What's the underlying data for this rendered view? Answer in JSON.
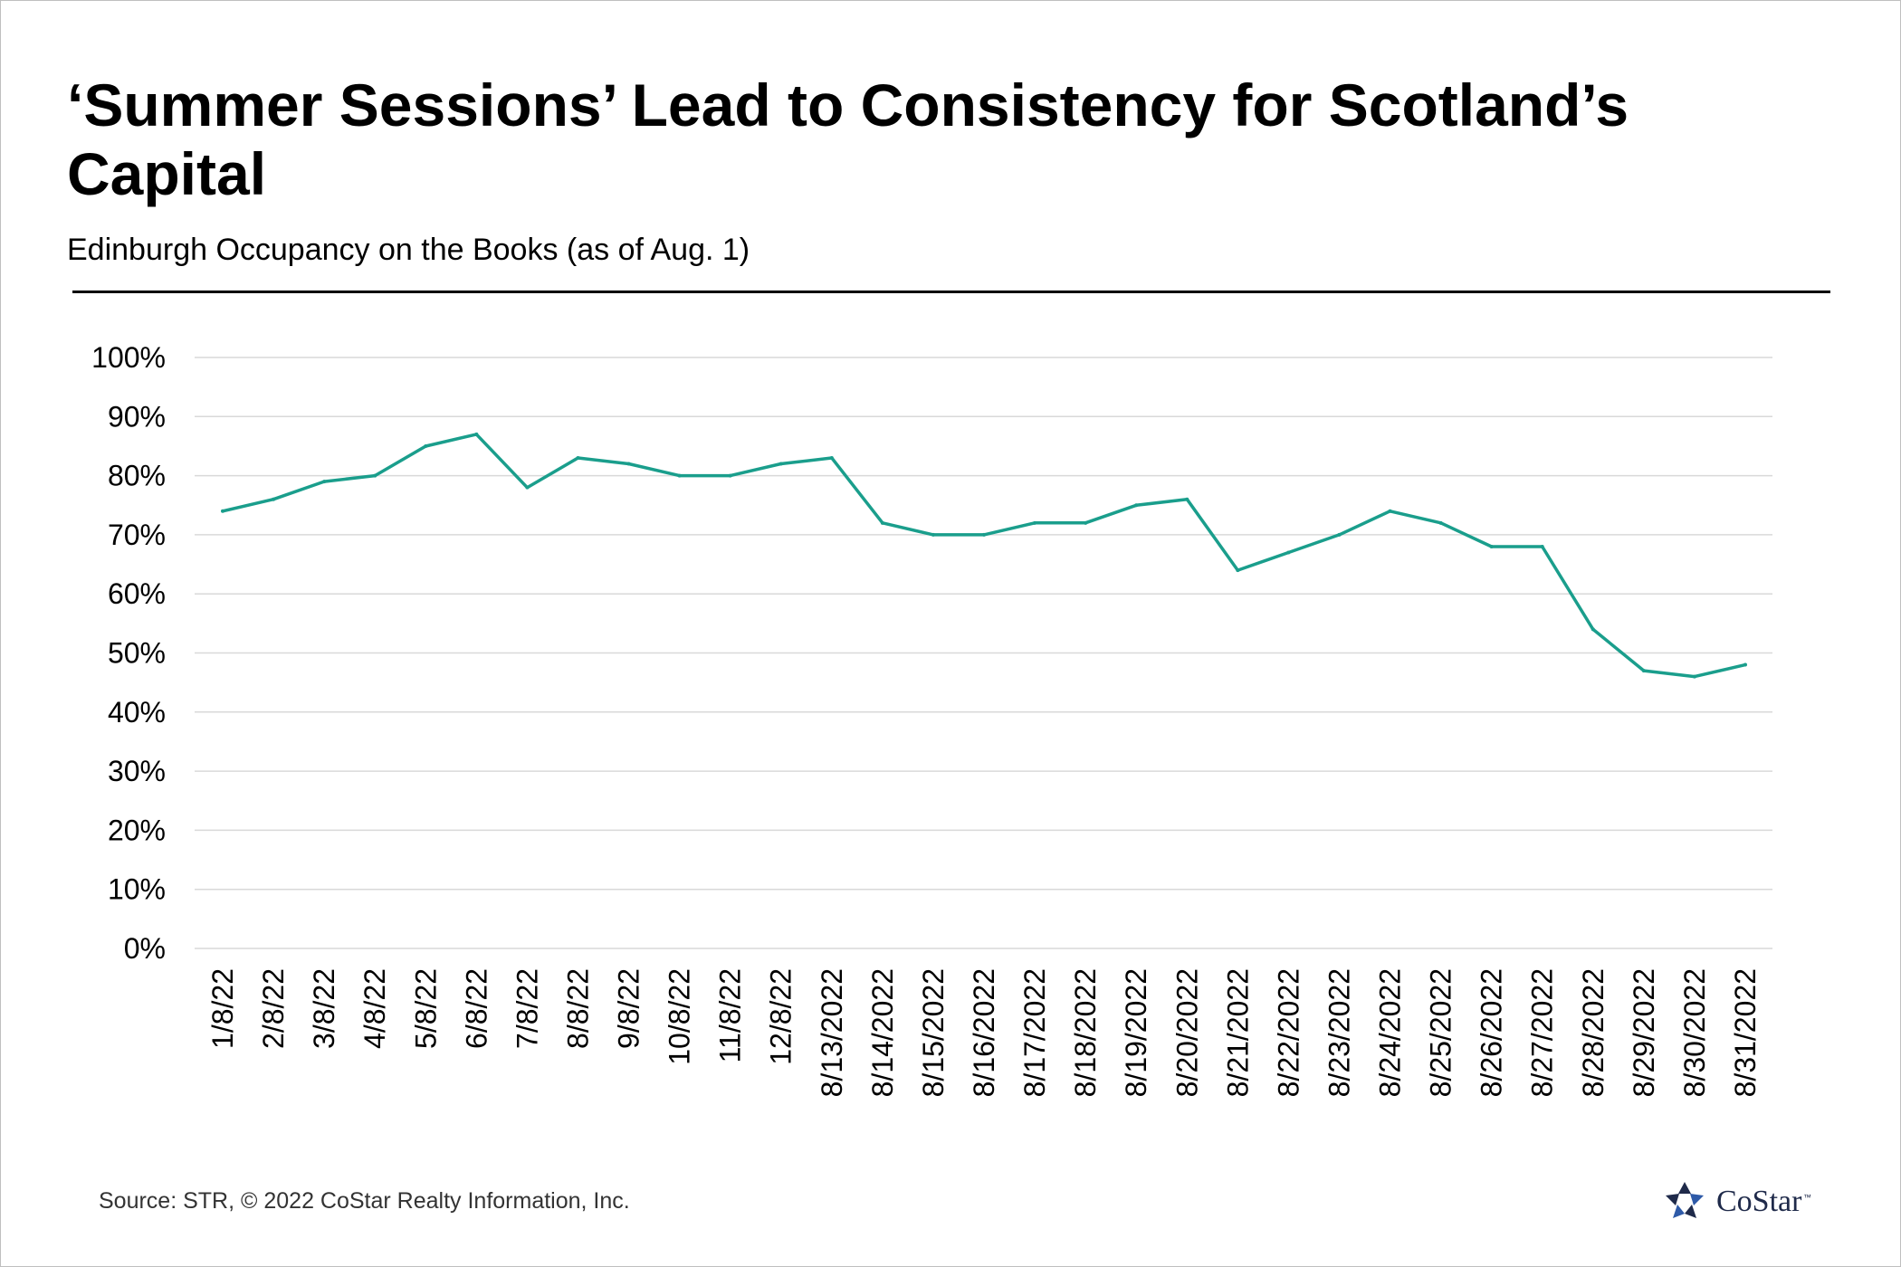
{
  "header": {
    "title": "‘Summer Sessions’ Lead to Consistency for Scotland’s Capital",
    "subtitle": "Edinburgh Occupancy on the Books (as of Aug. 1)"
  },
  "footer": {
    "source": "Source: STR, © 2022  CoStar Realty Information, Inc.",
    "logo_text": "CoStar",
    "logo_tm": "™"
  },
  "colors": {
    "line": "#1a9e8c",
    "grid": "#d9d9d9",
    "text": "#000000",
    "logo": "#1f2a4a"
  },
  "chart_data": {
    "type": "line",
    "title": "‘Summer Sessions’ Lead to Consistency for Scotland’s Capital",
    "subtitle": "Edinburgh Occupancy on the Books (as of Aug. 1)",
    "xlabel": "",
    "ylabel": "",
    "ylim": [
      0,
      100
    ],
    "yticks": [
      "0%",
      "10%",
      "20%",
      "30%",
      "40%",
      "50%",
      "60%",
      "70%",
      "80%",
      "90%",
      "100%"
    ],
    "grid": true,
    "legend": "none",
    "categories": [
      "1/8/22",
      "2/8/22",
      "3/8/22",
      "4/8/22",
      "5/8/22",
      "6/8/22",
      "7/8/22",
      "8/8/22",
      "9/8/22",
      "10/8/22",
      "11/8/22",
      "12/8/22",
      "8/13/2022",
      "8/14/2022",
      "8/15/2022",
      "8/16/2022",
      "8/17/2022",
      "8/18/2022",
      "8/19/2022",
      "8/20/2022",
      "8/21/2022",
      "8/22/2022",
      "8/23/2022",
      "8/24/2022",
      "8/25/2022",
      "8/26/2022",
      "8/27/2022",
      "8/28/2022",
      "8/29/2022",
      "8/30/2022",
      "8/31/2022"
    ],
    "values": [
      74,
      76,
      79,
      80,
      85,
      87,
      78,
      83,
      82,
      80,
      80,
      82,
      83,
      72,
      70,
      70,
      72,
      72,
      75,
      76,
      64,
      67,
      70,
      74,
      72,
      68,
      68,
      54,
      47,
      46,
      48
    ]
  }
}
